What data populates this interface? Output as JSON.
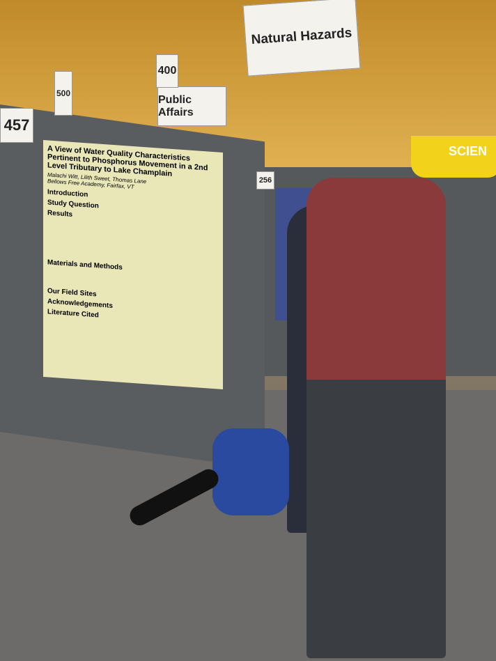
{
  "signs": {
    "booth_left": "457",
    "natural_hazards": "Natural Hazards",
    "public_affairs": "Public Affairs",
    "booth_256": "256",
    "science_banner": "SCIEN",
    "aisle_400": "400",
    "aisle_500": "500"
  },
  "poster": {
    "title": "A View of Water Quality Characteristics Pertinent to Phosphorus Movement in a 2nd Level Tributary to Lake Champlain",
    "authors": "Malachi Witt, Lilith Sweet, Thomas Lane",
    "school": "Bellows Free Academy, Fairfax, VT",
    "study_question": "Study Question",
    "results": "Results",
    "introduction": "Introduction",
    "materials": "Materials and Methods",
    "field_sites": "Our Field Sites",
    "acknowledgements": "Acknowledgements",
    "literature": "Literature Cited"
  }
}
